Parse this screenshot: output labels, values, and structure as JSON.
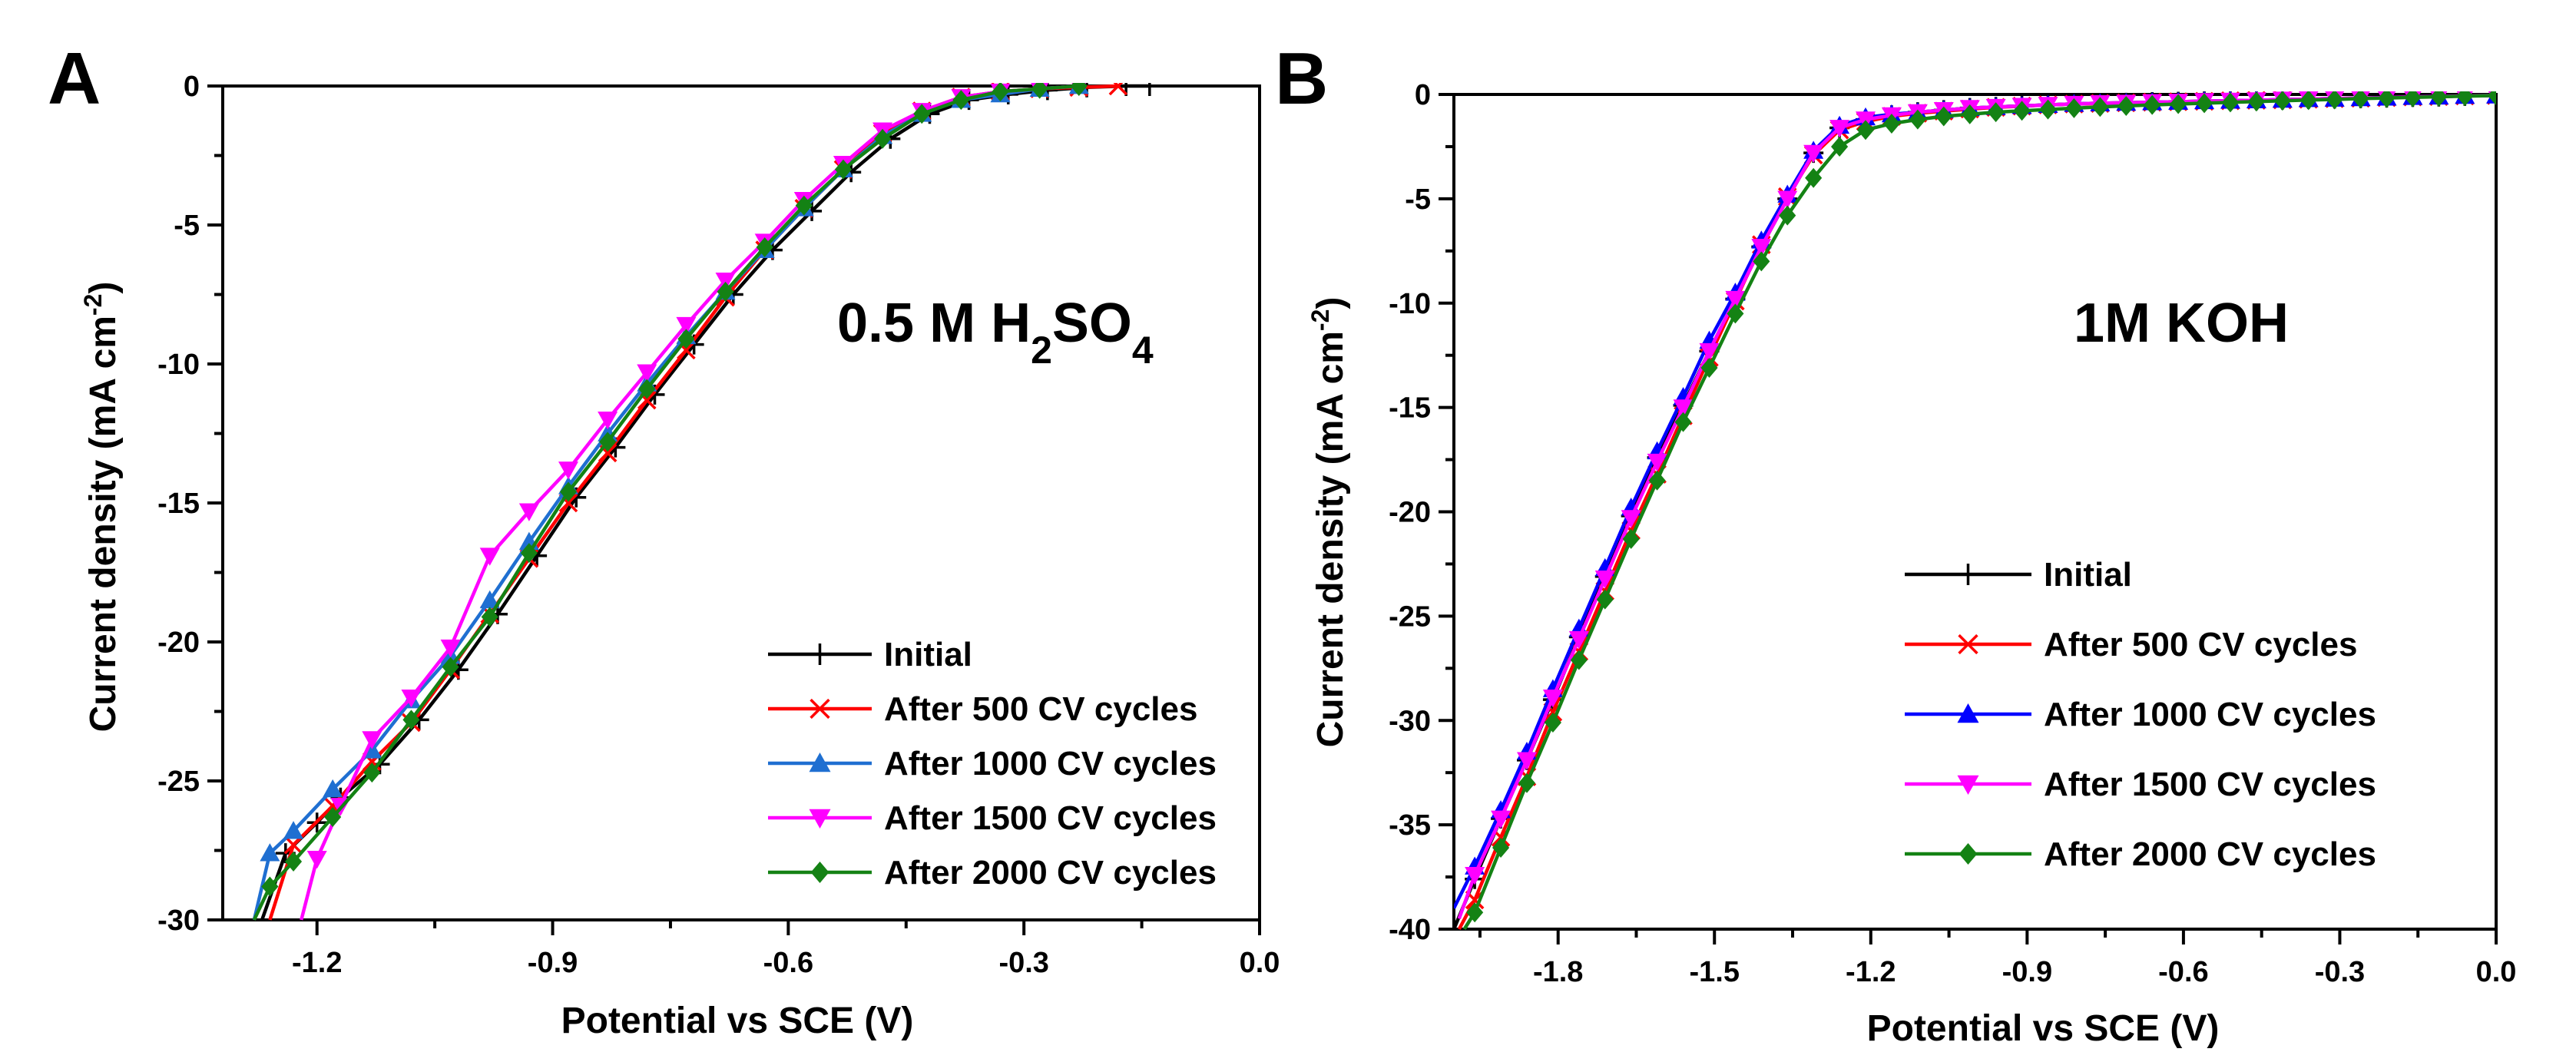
{
  "chart_data": [
    {
      "type": "line",
      "panel_label": "A",
      "annotation": "0.5 M H₂SO₄",
      "xlabel": "Potential vs SCE (V)",
      "ylabel": "Current density (mA cm⁻²)",
      "xlim": [
        -1.32,
        0.0
      ],
      "ylim": [
        -30,
        0
      ],
      "xticks": [
        -1.2,
        -0.9,
        -0.6,
        -0.3,
        0.0
      ],
      "xtick_labels": [
        "-1.2",
        "-0.9",
        "-0.6",
        "-0.3",
        "0.0"
      ],
      "yticks": [
        0,
        -5,
        -10,
        -15,
        -20,
        -25,
        -30
      ],
      "ytick_labels": [
        "0",
        "-5",
        "-10",
        "-15",
        "-20",
        "-25",
        "-30"
      ],
      "legend_position": "lower-right",
      "series": [
        {
          "name": "Initial",
          "color": "#000000",
          "marker": "plus",
          "x": [
            -1.27,
            -1.24,
            -1.2,
            -1.17,
            -1.12,
            -1.07,
            -1.02,
            -0.97,
            -0.92,
            -0.87,
            -0.82,
            -0.77,
            -0.72,
            -0.67,
            -0.62,
            -0.57,
            -0.52,
            -0.47,
            -0.42,
            -0.37,
            -0.32,
            -0.27,
            -0.22,
            -0.17,
            -0.14
          ],
          "y": [
            -30.0,
            -27.6,
            -26.5,
            -25.6,
            -24.4,
            -22.8,
            -21.0,
            -19.0,
            -16.9,
            -14.8,
            -13.0,
            -11.1,
            -9.3,
            -7.5,
            -5.9,
            -4.5,
            -3.1,
            -1.9,
            -1.0,
            -0.5,
            -0.3,
            -0.15,
            -0.05,
            0.0,
            0.0
          ]
        },
        {
          "name": "After 500 CV cycles",
          "color": "#ff0000",
          "marker": "x",
          "x": [
            -1.26,
            -1.23,
            -1.18,
            -1.13,
            -1.08,
            -1.03,
            -0.98,
            -0.93,
            -0.88,
            -0.83,
            -0.78,
            -0.73,
            -0.68,
            -0.63,
            -0.58,
            -0.53,
            -0.48,
            -0.43,
            -0.38,
            -0.33,
            -0.28,
            -0.23,
            -0.18
          ],
          "y": [
            -30.0,
            -27.3,
            -25.9,
            -24.3,
            -22.9,
            -21.0,
            -19.0,
            -17.0,
            -15.0,
            -13.2,
            -11.3,
            -9.5,
            -7.6,
            -5.9,
            -4.4,
            -3.0,
            -1.7,
            -0.9,
            -0.4,
            -0.2,
            -0.1,
            -0.05,
            0.0
          ]
        },
        {
          "name": "After 1000 CV cycles",
          "color": "#1f6fd1",
          "marker": "triangle-up",
          "x": [
            -1.28,
            -1.26,
            -1.23,
            -1.18,
            -1.13,
            -1.08,
            -1.03,
            -0.98,
            -0.93,
            -0.88,
            -0.83,
            -0.78,
            -0.73,
            -0.68,
            -0.63,
            -0.58,
            -0.53,
            -0.48,
            -0.43,
            -0.38,
            -0.33,
            -0.28,
            -0.23
          ],
          "y": [
            -30.0,
            -27.6,
            -26.8,
            -25.3,
            -23.9,
            -22.1,
            -20.5,
            -18.5,
            -16.4,
            -14.4,
            -12.5,
            -10.7,
            -9.0,
            -7.4,
            -5.9,
            -4.4,
            -3.0,
            -1.8,
            -1.0,
            -0.5,
            -0.3,
            -0.1,
            0.0
          ]
        },
        {
          "name": "After 1500 CV cycles",
          "color": "#ff00ff",
          "marker": "triangle-down",
          "x": [
            -1.22,
            -1.2,
            -1.17,
            -1.13,
            -1.08,
            -1.03,
            -0.98,
            -0.93,
            -0.88,
            -0.83,
            -0.78,
            -0.73,
            -0.68,
            -0.63,
            -0.58,
            -0.53,
            -0.48,
            -0.43,
            -0.38,
            -0.33,
            -0.28,
            -0.23
          ],
          "y": [
            -30.0,
            -27.8,
            -25.9,
            -23.5,
            -22.0,
            -20.2,
            -16.9,
            -15.3,
            -13.8,
            -12.0,
            -10.3,
            -8.6,
            -7.0,
            -5.6,
            -4.1,
            -2.8,
            -1.6,
            -0.9,
            -0.4,
            -0.2,
            -0.1,
            0.0
          ]
        },
        {
          "name": "After 2000 CV cycles",
          "color": "#148214",
          "marker": "diamond",
          "x": [
            -1.28,
            -1.26,
            -1.23,
            -1.18,
            -1.13,
            -1.08,
            -1.03,
            -0.98,
            -0.93,
            -0.88,
            -0.83,
            -0.78,
            -0.73,
            -0.68,
            -0.63,
            -0.58,
            -0.53,
            -0.48,
            -0.43,
            -0.38,
            -0.33,
            -0.28,
            -0.23
          ],
          "y": [
            -30.0,
            -28.8,
            -27.9,
            -26.3,
            -24.7,
            -22.8,
            -20.9,
            -19.1,
            -16.8,
            -14.6,
            -12.8,
            -10.9,
            -9.1,
            -7.4,
            -5.8,
            -4.3,
            -3.0,
            -1.9,
            -1.0,
            -0.5,
            -0.2,
            -0.1,
            0.0
          ]
        }
      ]
    },
    {
      "type": "line",
      "panel_label": "B",
      "annotation": "1M KOH",
      "xlabel": "Potential vs SCE (V)",
      "ylabel": "Current density (mA cm⁻²)",
      "xlim": [
        -2.0,
        0.0
      ],
      "ylim": [
        -40,
        0
      ],
      "xticks": [
        -1.8,
        -1.5,
        -1.2,
        -0.9,
        -0.6,
        -0.3,
        0.0
      ],
      "xtick_labels": [
        "-1.8",
        "-1.5",
        "-1.2",
        "-0.9",
        "-0.6",
        "-0.3",
        "0.0"
      ],
      "yticks": [
        0,
        -5,
        -10,
        -15,
        -20,
        -25,
        -30,
        -35,
        -40
      ],
      "ytick_labels": [
        "0",
        "-5",
        "-10",
        "-15",
        "-20",
        "-25",
        "-30",
        "-35",
        "-40"
      ],
      "legend_position": "lower-right",
      "series": [
        {
          "name": "Initial",
          "color": "#000000",
          "marker": "plus",
          "x": [
            -2.0,
            -1.96,
            -1.91,
            -1.86,
            -1.81,
            -1.76,
            -1.71,
            -1.66,
            -1.61,
            -1.56,
            -1.51,
            -1.46,
            -1.41,
            -1.36,
            -1.31,
            -1.26,
            -1.21,
            -1.16,
            -1.11,
            -1.06,
            -1.01,
            -0.96,
            -0.91,
            -0.86,
            -0.81,
            -0.76,
            -0.71,
            -0.66,
            -0.61,
            -0.56,
            -0.51,
            -0.46,
            -0.41,
            -0.36,
            -0.31,
            -0.26,
            -0.21,
            -0.16,
            -0.11,
            -0.06,
            0.0
          ],
          "y": [
            -40.0,
            -37.6,
            -34.7,
            -31.9,
            -29.0,
            -26.0,
            -23.1,
            -20.2,
            -17.4,
            -14.9,
            -12.3,
            -9.8,
            -7.3,
            -5.0,
            -2.8,
            -1.6,
            -1.2,
            -1.0,
            -0.85,
            -0.75,
            -0.65,
            -0.6,
            -0.55,
            -0.5,
            -0.45,
            -0.42,
            -0.4,
            -0.37,
            -0.35,
            -0.32,
            -0.3,
            -0.28,
            -0.25,
            -0.22,
            -0.2,
            -0.18,
            -0.15,
            -0.12,
            -0.1,
            -0.07,
            -0.05
          ]
        },
        {
          "name": "After 500 CV cycles",
          "color": "#ff0000",
          "marker": "x",
          "x": [
            -1.99,
            -1.96,
            -1.91,
            -1.86,
            -1.81,
            -1.76,
            -1.71,
            -1.66,
            -1.61,
            -1.56,
            -1.51,
            -1.46,
            -1.41,
            -1.36,
            -1.31,
            -1.26,
            -1.21,
            -1.16,
            -1.11,
            -1.06,
            -1.01,
            -0.96,
            -0.91,
            -0.86,
            -0.81,
            -0.76,
            -0.71,
            -0.66,
            -0.61,
            -0.56,
            -0.51,
            -0.46,
            -0.41,
            -0.36,
            -0.31,
            -0.26,
            -0.21,
            -0.16,
            -0.11,
            -0.06,
            0.0
          ],
          "y": [
            -40.0,
            -38.6,
            -35.6,
            -32.7,
            -29.6,
            -26.7,
            -23.8,
            -20.9,
            -18.2,
            -15.4,
            -12.6,
            -9.9,
            -7.2,
            -4.9,
            -2.9,
            -1.7,
            -1.3,
            -1.05,
            -0.9,
            -0.8,
            -0.7,
            -0.62,
            -0.56,
            -0.5,
            -0.46,
            -0.43,
            -0.4,
            -0.37,
            -0.35,
            -0.33,
            -0.3,
            -0.28,
            -0.26,
            -0.23,
            -0.2,
            -0.18,
            -0.15,
            -0.12,
            -0.1,
            -0.07,
            -0.05
          ]
        },
        {
          "name": "After 1000 CV cycles",
          "color": "#0000ff",
          "marker": "triangle-up",
          "x": [
            -2.0,
            -1.96,
            -1.91,
            -1.86,
            -1.81,
            -1.76,
            -1.71,
            -1.66,
            -1.61,
            -1.56,
            -1.51,
            -1.46,
            -1.41,
            -1.36,
            -1.31,
            -1.26,
            -1.21,
            -1.16,
            -1.11,
            -1.06,
            -1.01,
            -0.96,
            -0.91,
            -0.86,
            -0.81,
            -0.76,
            -0.71,
            -0.66,
            -0.61,
            -0.56,
            -0.51,
            -0.46,
            -0.41,
            -0.36,
            -0.31,
            -0.26,
            -0.21,
            -0.16,
            -0.11,
            -0.06,
            0.0
          ],
          "y": [
            -39.0,
            -37.0,
            -34.3,
            -31.5,
            -28.5,
            -25.6,
            -22.7,
            -19.8,
            -17.1,
            -14.5,
            -11.8,
            -9.5,
            -7.0,
            -4.8,
            -2.7,
            -1.5,
            -1.1,
            -0.95,
            -0.85,
            -0.75,
            -0.65,
            -0.6,
            -0.55,
            -0.5,
            -0.45,
            -0.42,
            -0.4,
            -0.37,
            -0.35,
            -0.32,
            -0.3,
            -0.28,
            -0.25,
            -0.22,
            -0.2,
            -0.18,
            -0.15,
            -0.12,
            -0.1,
            -0.07,
            -0.05
          ]
        },
        {
          "name": "After 1500 CV cycles",
          "color": "#ff00ff",
          "marker": "triangle-down",
          "x": [
            -1.99,
            -1.96,
            -1.91,
            -1.86,
            -1.81,
            -1.76,
            -1.71,
            -1.66,
            -1.61,
            -1.56,
            -1.51,
            -1.46,
            -1.41,
            -1.36,
            -1.31,
            -1.26,
            -1.21,
            -1.16,
            -1.11,
            -1.06,
            -1.01,
            -0.96,
            -0.91,
            -0.86,
            -0.81,
            -0.76,
            -0.71,
            -0.66,
            -0.61,
            -0.56,
            -0.51,
            -0.46,
            -0.41,
            -0.36,
            -0.31,
            -0.26,
            -0.21,
            -0.16,
            -0.11,
            -0.06,
            0.0
          ],
          "y": [
            -39.5,
            -37.4,
            -34.7,
            -31.9,
            -28.9,
            -26.1,
            -23.2,
            -20.3,
            -17.6,
            -15.0,
            -12.3,
            -9.8,
            -7.3,
            -5.0,
            -2.8,
            -1.6,
            -1.2,
            -1.0,
            -0.85,
            -0.75,
            -0.65,
            -0.6,
            -0.55,
            -0.5,
            -0.45,
            -0.42,
            -0.4,
            -0.37,
            -0.35,
            -0.32,
            -0.3,
            -0.28,
            -0.25,
            -0.22,
            -0.2,
            -0.18,
            -0.15,
            -0.12,
            -0.1,
            -0.07,
            -0.05
          ]
        },
        {
          "name": "After 2000 CV cycles",
          "color": "#148214",
          "marker": "diamond",
          "x": [
            -1.98,
            -1.96,
            -1.91,
            -1.86,
            -1.81,
            -1.76,
            -1.71,
            -1.66,
            -1.61,
            -1.56,
            -1.51,
            -1.46,
            -1.41,
            -1.36,
            -1.31,
            -1.26,
            -1.21,
            -1.16,
            -1.11,
            -1.06,
            -1.01,
            -0.96,
            -0.91,
            -0.86,
            -0.81,
            -0.76,
            -0.71,
            -0.66,
            -0.61,
            -0.56,
            -0.51,
            -0.46,
            -0.41,
            -0.36,
            -0.31,
            -0.26,
            -0.21,
            -0.16,
            -0.11,
            -0.06,
            0.0
          ],
          "y": [
            -40.0,
            -39.2,
            -36.1,
            -33.0,
            -30.1,
            -27.1,
            -24.2,
            -21.3,
            -18.5,
            -15.7,
            -13.1,
            -10.5,
            -8.0,
            -5.8,
            -4.0,
            -2.5,
            -1.7,
            -1.4,
            -1.2,
            -1.05,
            -0.95,
            -0.85,
            -0.78,
            -0.72,
            -0.66,
            -0.6,
            -0.55,
            -0.5,
            -0.46,
            -0.42,
            -0.38,
            -0.34,
            -0.3,
            -0.27,
            -0.24,
            -0.2,
            -0.17,
            -0.14,
            -0.11,
            -0.08,
            -0.05
          ]
        }
      ]
    }
  ]
}
